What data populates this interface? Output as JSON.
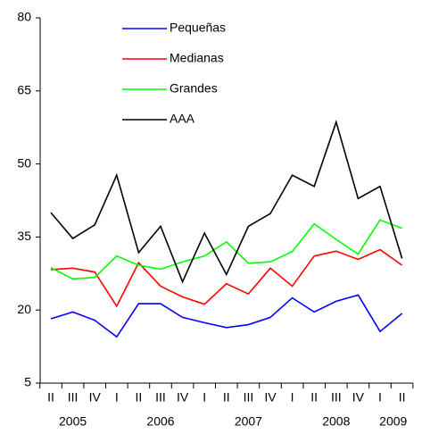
{
  "chart_data": {
    "type": "line",
    "categories": [
      "II",
      "III",
      "IV",
      "I",
      "II",
      "III",
      "IV",
      "I",
      "II",
      "III",
      "IV",
      "I",
      "II",
      "III",
      "IV",
      "I",
      "II"
    ],
    "years": [
      "2005",
      "2006",
      "2007",
      "2008",
      "2009"
    ],
    "series": [
      {
        "name": "Pequeñas",
        "color": "#0000ff",
        "values": [
          18.2,
          19.6,
          17.9,
          14.5,
          21.3,
          21.3,
          18.5,
          17.4,
          16.4,
          17.0,
          18.5,
          22.5,
          19.6,
          21.8,
          23.1,
          15.6,
          19.3
        ]
      },
      {
        "name": "Medianas",
        "color": "#ff0000",
        "values": [
          28.3,
          28.6,
          27.8,
          20.8,
          29.7,
          24.9,
          22.7,
          21.2,
          25.4,
          23.3,
          28.6,
          24.9,
          31.1,
          32.1,
          30.4,
          32.4,
          29.2
        ]
      },
      {
        "name": "Grandes",
        "color": "#00ff00",
        "values": [
          28.7,
          26.4,
          26.7,
          31.1,
          29.2,
          28.4,
          29.9,
          31.1,
          34.0,
          29.6,
          29.9,
          32.0,
          37.7,
          34.5,
          31.5,
          38.5,
          36.8
        ]
      },
      {
        "name": "AAA",
        "color": "#000000",
        "values": [
          40.0,
          34.7,
          37.5,
          47.7,
          31.8,
          37.2,
          25.8,
          35.8,
          27.3,
          37.2,
          39.8,
          47.7,
          45.4,
          58.6,
          42.9,
          45.4,
          30.6
        ]
      }
    ],
    "ylim": [
      5,
      80
    ],
    "yticks": [
      5,
      20,
      35,
      50,
      65,
      80
    ]
  }
}
